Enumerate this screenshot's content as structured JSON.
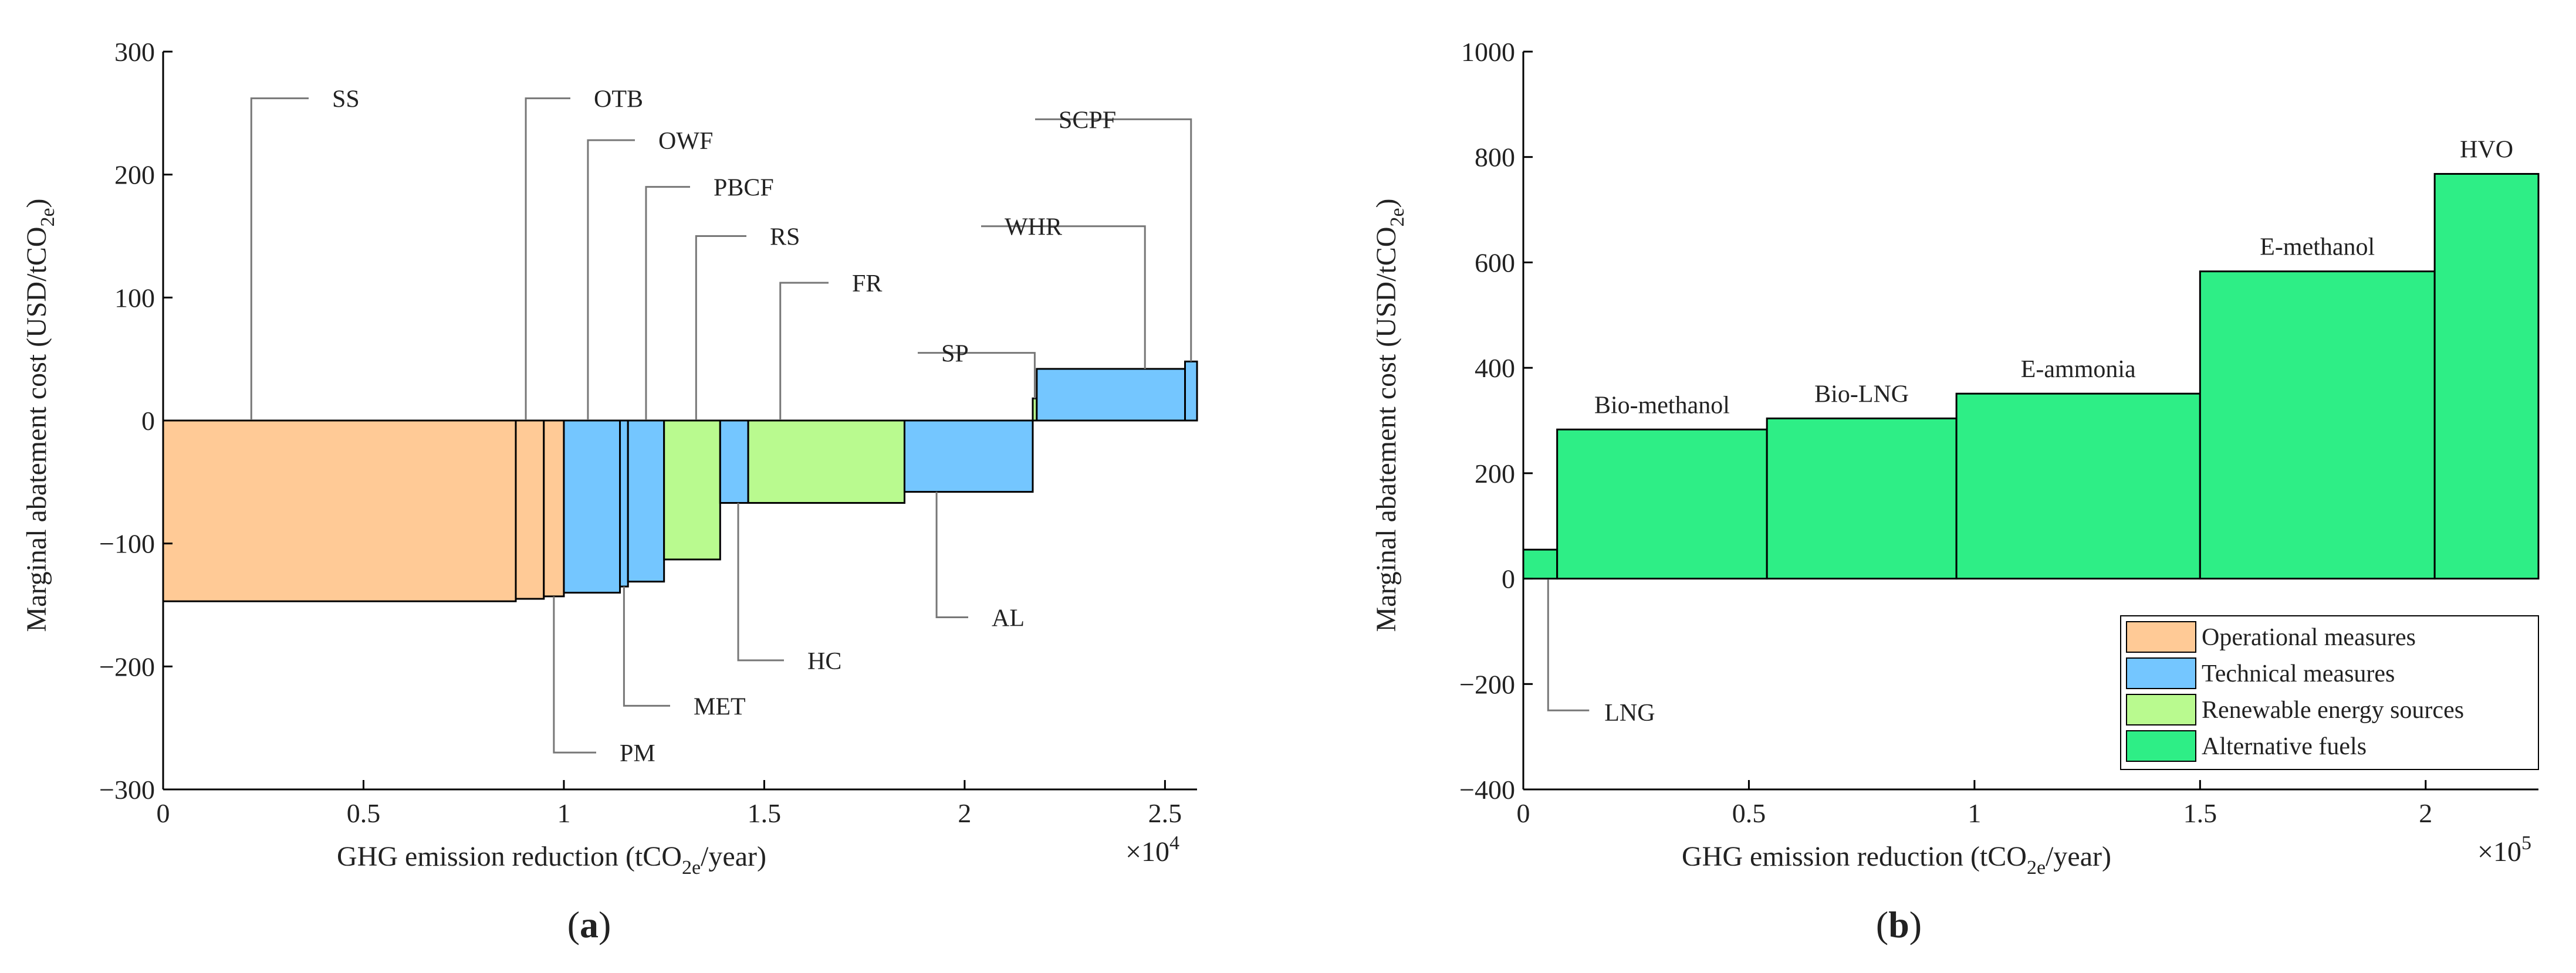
{
  "colors": {
    "operational": "#FFCA96",
    "technical": "#74C6FF",
    "renewable": "#B9FA8F",
    "alternative": "#2EEE86",
    "edge": "#000000",
    "leader": "#777777"
  },
  "legend": {
    "operational": "Operational measures",
    "technical": "Technical measures",
    "renewable": "Renewable energy sources",
    "alternative": "Alternative fuels"
  },
  "chart_data": [
    {
      "type": "bar",
      "panel_label": "a",
      "panel_label_full": "(a)",
      "xlabel_prefix": "GHG emission reduction (tCO",
      "xlabel_sub": "2e",
      "xlabel_suffix": "/year)",
      "ylabel_prefix": "Marginal abatement cost (USD/tCO",
      "ylabel_sub": "2e",
      "ylabel_suffix": ")",
      "x_multiplier": "×10",
      "x_multiplier_exp": "4",
      "xlim": [
        0,
        2.58
      ],
      "ylim": [
        -300,
        300
      ],
      "x_ticks": [
        {
          "v": 0,
          "label": "0"
        },
        {
          "v": 0.5,
          "label": "0.5"
        },
        {
          "v": 1,
          "label": "1"
        },
        {
          "v": 1.5,
          "label": "1.5"
        },
        {
          "v": 2,
          "label": "2"
        },
        {
          "v": 2.5,
          "label": "2.5"
        }
      ],
      "y_ticks": [
        {
          "v": 300,
          "label": "300"
        },
        {
          "v": 200,
          "label": "200"
        },
        {
          "v": 100,
          "label": "100"
        },
        {
          "v": 0,
          "label": "0"
        },
        {
          "v": -100,
          "label": "−100"
        },
        {
          "v": -200,
          "label": "−200"
        },
        {
          "v": -300,
          "label": "−300"
        }
      ],
      "bars": [
        {
          "label": "SS",
          "category": "operational",
          "x0": 0.0,
          "x1": 0.88,
          "value": -147,
          "label_y": 262
        },
        {
          "label": "OTB",
          "category": "operational",
          "x0": 0.88,
          "x1": 0.95,
          "value": -145,
          "label_y": 262
        },
        {
          "label": "PM",
          "category": "operational",
          "x0": 0.95,
          "x1": 1.0,
          "value": -143,
          "label_y": -270
        },
        {
          "label": "OWF",
          "category": "technical",
          "x0": 1.0,
          "x1": 1.14,
          "value": -140,
          "label_y": 228
        },
        {
          "label": "MET",
          "category": "technical",
          "x0": 1.14,
          "x1": 1.16,
          "value": -135,
          "label_y": -232
        },
        {
          "label": "PBCF",
          "category": "technical",
          "x0": 1.16,
          "x1": 1.25,
          "value": -131,
          "label_y": 190
        },
        {
          "label": "RS",
          "category": "renewable",
          "x0": 1.25,
          "x1": 1.39,
          "value": -113,
          "label_y": 150
        },
        {
          "label": "HC",
          "category": "technical",
          "x0": 1.39,
          "x1": 1.46,
          "value": -67,
          "label_y": -195
        },
        {
          "label": "FR",
          "category": "renewable",
          "x0": 1.46,
          "x1": 1.85,
          "value": -67,
          "label_y": 112
        },
        {
          "label": "AL",
          "category": "technical",
          "x0": 1.85,
          "x1": 2.17,
          "value": -58,
          "label_y": -160
        },
        {
          "label": "SP",
          "category": "renewable",
          "x0": 2.17,
          "x1": 2.18,
          "value": 18,
          "label_y": 55
        },
        {
          "label": "WHR",
          "category": "technical",
          "x0": 2.18,
          "x1": 2.55,
          "value": 42,
          "label_y": 158
        },
        {
          "label": "SCPF",
          "category": "technical",
          "x0": 2.55,
          "x1": 2.58,
          "value": 48,
          "label_y": 245
        }
      ]
    },
    {
      "type": "bar",
      "panel_label": "b",
      "panel_label_full": "(b)",
      "xlabel_prefix": "GHG emission reduction (tCO",
      "xlabel_sub": "2e",
      "xlabel_suffix": "/year)",
      "ylabel_prefix": "Marginal abatement cost (USD/tCO",
      "ylabel_sub": "2e",
      "ylabel_suffix": ")",
      "x_multiplier": "×10",
      "x_multiplier_exp": "5",
      "xlim": [
        0,
        2.25
      ],
      "ylim": [
        -400,
        1000
      ],
      "x_ticks": [
        {
          "v": 0,
          "label": "0"
        },
        {
          "v": 0.5,
          "label": "0.5"
        },
        {
          "v": 1,
          "label": "1"
        },
        {
          "v": 1.5,
          "label": "1.5"
        },
        {
          "v": 2,
          "label": "2"
        }
      ],
      "y_ticks": [
        {
          "v": 1000,
          "label": "1000"
        },
        {
          "v": 800,
          "label": "800"
        },
        {
          "v": 600,
          "label": "600"
        },
        {
          "v": 400,
          "label": "400"
        },
        {
          "v": 200,
          "label": "200"
        },
        {
          "v": 0,
          "label": "0"
        },
        {
          "v": -200,
          "label": "−200"
        },
        {
          "v": -400,
          "label": "−400"
        }
      ],
      "bars": [
        {
          "label": "LNG",
          "category": "alternative",
          "x0": 0.0,
          "x1": 0.075,
          "value": 55,
          "label_y": -250
        },
        {
          "label": "Bio-methanol",
          "category": "alternative",
          "x0": 0.075,
          "x1": 0.54,
          "value": 283
        },
        {
          "label": "Bio-LNG",
          "category": "alternative",
          "x0": 0.54,
          "x1": 0.96,
          "value": 304
        },
        {
          "label": "E-ammonia",
          "category": "alternative",
          "x0": 0.96,
          "x1": 1.5,
          "value": 351
        },
        {
          "label": "E-methanol",
          "category": "alternative",
          "x0": 1.5,
          "x1": 2.02,
          "value": 583
        },
        {
          "label": "HVO",
          "category": "alternative",
          "x0": 2.02,
          "x1": 2.25,
          "value": 768
        }
      ]
    }
  ]
}
